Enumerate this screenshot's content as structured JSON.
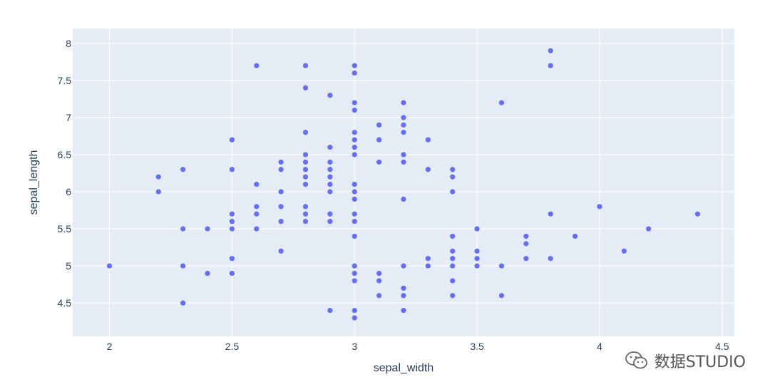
{
  "chart_data": {
    "type": "scatter",
    "xlabel": "sepal_width",
    "ylabel": "sepal_length",
    "xlim": [
      1.85,
      4.55
    ],
    "ylim": [
      4.05,
      8.2
    ],
    "x_ticks": [
      2,
      2.5,
      3,
      3.5,
      4,
      4.5
    ],
    "x_tick_labels": [
      "2",
      "2.5",
      "3",
      "3.5",
      "4",
      "4.5"
    ],
    "y_ticks": [
      4.5,
      5,
      5.5,
      6,
      6.5,
      7,
      7.5,
      8
    ],
    "y_tick_labels": [
      "4.5",
      "5",
      "5.5",
      "6",
      "6.5",
      "7",
      "7.5",
      "8"
    ],
    "grid": true,
    "colors": {
      "plot_bg": "#e5ecf6",
      "grid": "#ffffff",
      "marker": "#636efa",
      "text": "#2a3f5f"
    },
    "points": [
      [
        2.0,
        5.0
      ],
      [
        2.2,
        6.2
      ],
      [
        2.2,
        6.0
      ],
      [
        2.3,
        6.3
      ],
      [
        2.3,
        5.5
      ],
      [
        2.3,
        5.0
      ],
      [
        2.3,
        4.5
      ],
      [
        2.4,
        5.5
      ],
      [
        2.4,
        4.9
      ],
      [
        2.5,
        6.7
      ],
      [
        2.5,
        6.3
      ],
      [
        2.5,
        5.7
      ],
      [
        2.5,
        5.6
      ],
      [
        2.5,
        5.5
      ],
      [
        2.5,
        5.1
      ],
      [
        2.5,
        4.9
      ],
      [
        2.6,
        7.7
      ],
      [
        2.6,
        6.1
      ],
      [
        2.6,
        5.8
      ],
      [
        2.6,
        5.7
      ],
      [
        2.6,
        5.5
      ],
      [
        2.7,
        6.4
      ],
      [
        2.7,
        6.3
      ],
      [
        2.7,
        6.0
      ],
      [
        2.7,
        5.8
      ],
      [
        2.7,
        5.6
      ],
      [
        2.7,
        5.2
      ],
      [
        2.8,
        7.7
      ],
      [
        2.8,
        7.4
      ],
      [
        2.8,
        6.8
      ],
      [
        2.8,
        6.5
      ],
      [
        2.8,
        6.4
      ],
      [
        2.8,
        6.3
      ],
      [
        2.8,
        6.2
      ],
      [
        2.8,
        6.1
      ],
      [
        2.8,
        5.8
      ],
      [
        2.8,
        5.7
      ],
      [
        2.8,
        5.6
      ],
      [
        2.9,
        7.3
      ],
      [
        2.9,
        6.6
      ],
      [
        2.9,
        6.4
      ],
      [
        2.9,
        6.3
      ],
      [
        2.9,
        6.2
      ],
      [
        2.9,
        6.1
      ],
      [
        2.9,
        6.0
      ],
      [
        2.9,
        5.7
      ],
      [
        2.9,
        5.6
      ],
      [
        2.9,
        4.4
      ],
      [
        3.0,
        7.7
      ],
      [
        3.0,
        7.6
      ],
      [
        3.0,
        7.2
      ],
      [
        3.0,
        7.1
      ],
      [
        3.0,
        6.8
      ],
      [
        3.0,
        6.7
      ],
      [
        3.0,
        6.6
      ],
      [
        3.0,
        6.5
      ],
      [
        3.0,
        6.1
      ],
      [
        3.0,
        6.0
      ],
      [
        3.0,
        5.9
      ],
      [
        3.0,
        5.7
      ],
      [
        3.0,
        5.6
      ],
      [
        3.0,
        5.4
      ],
      [
        3.0,
        5.0
      ],
      [
        3.0,
        4.9
      ],
      [
        3.0,
        4.8
      ],
      [
        3.0,
        4.4
      ],
      [
        3.0,
        4.3
      ],
      [
        3.1,
        6.9
      ],
      [
        3.1,
        6.7
      ],
      [
        3.1,
        6.4
      ],
      [
        3.1,
        4.9
      ],
      [
        3.1,
        4.8
      ],
      [
        3.1,
        4.6
      ],
      [
        3.2,
        7.2
      ],
      [
        3.2,
        7.0
      ],
      [
        3.2,
        6.9
      ],
      [
        3.2,
        6.8
      ],
      [
        3.2,
        6.5
      ],
      [
        3.2,
        6.4
      ],
      [
        3.2,
        5.9
      ],
      [
        3.2,
        5.0
      ],
      [
        3.2,
        4.7
      ],
      [
        3.2,
        4.6
      ],
      [
        3.2,
        4.4
      ],
      [
        3.3,
        6.7
      ],
      [
        3.3,
        6.3
      ],
      [
        3.3,
        5.1
      ],
      [
        3.3,
        5.0
      ],
      [
        3.4,
        6.3
      ],
      [
        3.4,
        6.2
      ],
      [
        3.4,
        6.0
      ],
      [
        3.4,
        5.4
      ],
      [
        3.4,
        5.2
      ],
      [
        3.4,
        5.1
      ],
      [
        3.4,
        5.0
      ],
      [
        3.4,
        4.8
      ],
      [
        3.4,
        4.6
      ],
      [
        3.5,
        5.5
      ],
      [
        3.5,
        5.2
      ],
      [
        3.5,
        5.1
      ],
      [
        3.5,
        5.0
      ],
      [
        3.6,
        7.2
      ],
      [
        3.6,
        5.0
      ],
      [
        3.6,
        4.6
      ],
      [
        3.7,
        5.4
      ],
      [
        3.7,
        5.3
      ],
      [
        3.7,
        5.1
      ],
      [
        3.8,
        7.9
      ],
      [
        3.8,
        7.7
      ],
      [
        3.8,
        5.7
      ],
      [
        3.8,
        5.1
      ],
      [
        3.9,
        5.4
      ],
      [
        4.0,
        5.8
      ],
      [
        4.1,
        5.2
      ],
      [
        4.2,
        5.5
      ],
      [
        4.4,
        5.7
      ]
    ]
  },
  "watermark": {
    "text": "数据STUDIO",
    "icon": "wechat-icon"
  }
}
